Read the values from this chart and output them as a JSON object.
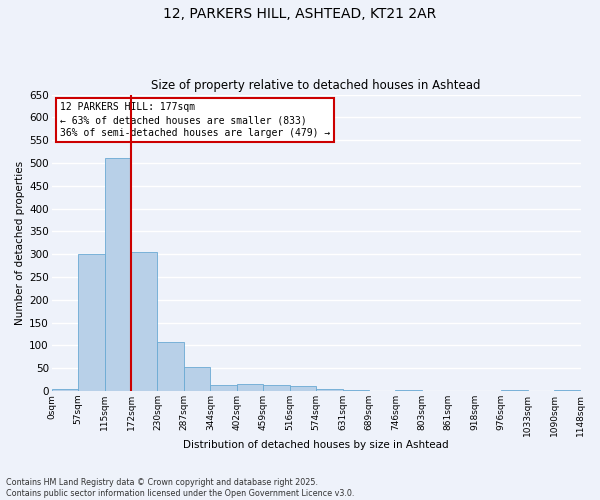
{
  "title1": "12, PARKERS HILL, ASHTEAD, KT21 2AR",
  "title2": "Size of property relative to detached houses in Ashtead",
  "xlabel": "Distribution of detached houses by size in Ashtead",
  "ylabel": "Number of detached properties",
  "bin_labels": [
    "0sqm",
    "57sqm",
    "115sqm",
    "172sqm",
    "230sqm",
    "287sqm",
    "344sqm",
    "402sqm",
    "459sqm",
    "516sqm",
    "574sqm",
    "631sqm",
    "689sqm",
    "746sqm",
    "803sqm",
    "861sqm",
    "918sqm",
    "976sqm",
    "1033sqm",
    "1090sqm",
    "1148sqm"
  ],
  "bar_heights": [
    5,
    300,
    510,
    305,
    108,
    53,
    12,
    15,
    13,
    10,
    5,
    3,
    0,
    2,
    0,
    0,
    0,
    2,
    0,
    2
  ],
  "bar_color": "#b8d0e8",
  "bar_edge_color": "#6aaad4",
  "vline_color": "#cc0000",
  "ylim": [
    0,
    650
  ],
  "yticks": [
    0,
    50,
    100,
    150,
    200,
    250,
    300,
    350,
    400,
    450,
    500,
    550,
    600,
    650
  ],
  "annotation_text": "12 PARKERS HILL: 177sqm\n← 63% of detached houses are smaller (833)\n36% of semi-detached houses are larger (479) →",
  "bg_color": "#eef2fa",
  "grid_color": "#ffffff",
  "footer_text": "Contains HM Land Registry data © Crown copyright and database right 2025.\nContains public sector information licensed under the Open Government Licence v3.0.",
  "bin_width": 57,
  "vline_bin": 3
}
